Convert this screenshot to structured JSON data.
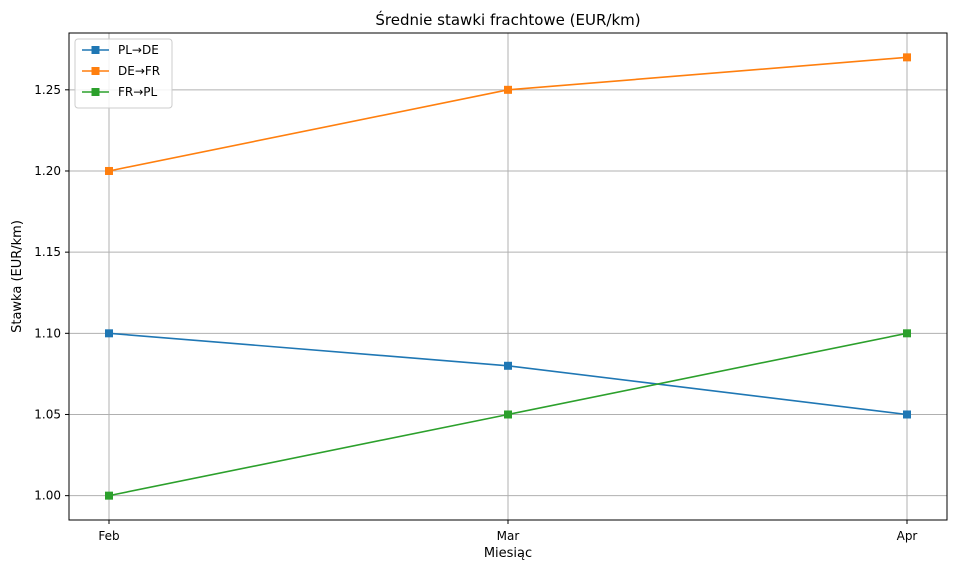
{
  "chart_data": {
    "type": "line",
    "title": "Średnie stawki frachtowe (EUR/km)",
    "xlabel": "Miesiąc",
    "ylabel": "Stawka (EUR/km)",
    "categories": [
      "Feb",
      "Mar",
      "Apr"
    ],
    "ylim": [
      0.985,
      1.285
    ],
    "yticks": [
      1.0,
      1.05,
      1.1,
      1.15,
      1.2,
      1.25
    ],
    "ytick_labels": [
      "1.00",
      "1.05",
      "1.10",
      "1.15",
      "1.20",
      "1.25"
    ],
    "grid": true,
    "legend_position": "top-left",
    "series": [
      {
        "name": "PL→DE",
        "values": [
          1.1,
          1.08,
          1.05
        ],
        "color": "#1f77b4",
        "marker": "square"
      },
      {
        "name": "DE→FR",
        "values": [
          1.2,
          1.25,
          1.27
        ],
        "color": "#ff7f0e",
        "marker": "square"
      },
      {
        "name": "FR→PL",
        "values": [
          1.0,
          1.05,
          1.1
        ],
        "color": "#2ca02c",
        "marker": "square"
      }
    ]
  }
}
